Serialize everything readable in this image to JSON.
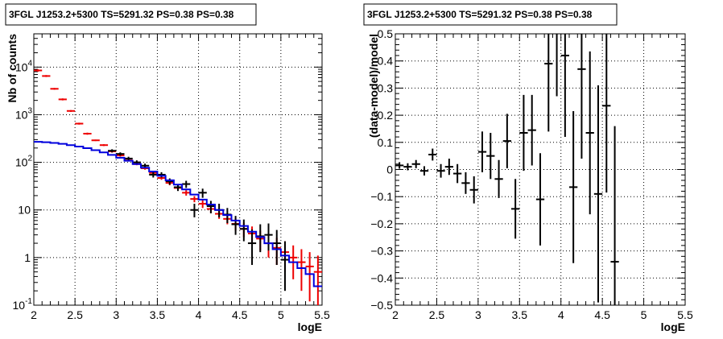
{
  "chart_data": [
    {
      "type": "step-histogram-with-errorbars",
      "title": "3FGL J1253.2+5300 TS=5291.32 PS=0.38 PS=0.38",
      "xlabel": "logE",
      "ylabel": "Nb of counts",
      "xlim": [
        2,
        5.5
      ],
      "ylim": [
        0.1,
        50000
      ],
      "yscale": "log",
      "grid": true,
      "x_tick_labels": [
        "2",
        "2.5",
        "3",
        "3.5",
        "4",
        "4.5",
        "5",
        "5.5"
      ],
      "y_tick_labels": [
        {
          "base": "10",
          "exp": "-1"
        },
        {
          "base": "1",
          "exp": ""
        },
        {
          "base": "10",
          "exp": ""
        },
        {
          "base": "10",
          "exp": "2"
        },
        {
          "base": "10",
          "exp": "3"
        },
        {
          "base": "10",
          "exp": "4"
        }
      ],
      "series": [
        {
          "color": "#ee0000",
          "style": "errorbars",
          "x": [
            2.05,
            2.15,
            2.25,
            2.35,
            2.45,
            2.55,
            2.65,
            2.75,
            2.85,
            2.95,
            3.05,
            3.15,
            3.25,
            3.35,
            3.45,
            3.55,
            3.65,
            3.75,
            3.85,
            3.95,
            4.05,
            4.15,
            4.25,
            4.35,
            4.45,
            4.55,
            4.65,
            4.75,
            4.85,
            4.95,
            5.05,
            5.15,
            5.25,
            5.35,
            5.45
          ],
          "y": [
            8500,
            6500,
            3500,
            2100,
            1200,
            650,
            400,
            290,
            230,
            170,
            140,
            110,
            92,
            75,
            60,
            47,
            37,
            29,
            23,
            17,
            13.5,
            10.5,
            8.3,
            6.5,
            5.1,
            4.0,
            3.2,
            2.5,
            2.0,
            1.6,
            1.3,
            1.0,
            0.8,
            0.65,
            0.5
          ],
          "yerr_low": [
            8000,
            6200,
            3350,
            2000,
            1150,
            620,
            380,
            280,
            220,
            160,
            132,
            104,
            87,
            70,
            55,
            43,
            33,
            26,
            20,
            14.5,
            11,
            8.6,
            6.5,
            5.0,
            3.7,
            2.7,
            2.0,
            1.4,
            1.0,
            0.7,
            0.5,
            0.35,
            0.2,
            0.12,
            0.1
          ],
          "yerr_high": [
            9000,
            6800,
            3650,
            2200,
            1250,
            680,
            420,
            300,
            240,
            180,
            148,
            116,
            97,
            80,
            65,
            51,
            41,
            32,
            26,
            19.5,
            16,
            12.5,
            10.2,
            8.1,
            6.6,
            5.4,
            4.5,
            3.7,
            3.1,
            2.6,
            2.2,
            1.8,
            1.5,
            1.3,
            1.1
          ]
        },
        {
          "color": "#000000",
          "style": "errorbars",
          "x": [
            2.95,
            3.05,
            3.15,
            3.25,
            3.35,
            3.45,
            3.55,
            3.65,
            3.75,
            3.85,
            3.95,
            4.05,
            4.15,
            4.25,
            4.35,
            4.45,
            4.55,
            4.65,
            4.75,
            4.85,
            4.95,
            5.05
          ],
          "y": [
            175,
            150,
            120,
            100,
            85,
            55,
            55,
            40,
            30,
            35,
            10,
            23,
            12,
            10,
            8,
            5,
            4,
            2,
            2.8,
            3,
            2,
            0.9
          ],
          "yerr_low": [
            162,
            138,
            109,
            90,
            76,
            48,
            48,
            34,
            25,
            29,
            7,
            18,
            8.5,
            7,
            5.3,
            3,
            2.2,
            0.7,
            1.3,
            1.4,
            0.7,
            0.2
          ],
          "yerr_high": [
            188,
            162,
            131,
            110,
            94,
            62,
            62,
            46,
            35,
            41,
            13.5,
            28,
            15.5,
            13.5,
            11,
            7.5,
            6.3,
            3.9,
            5,
            5.2,
            3.8,
            2.2
          ]
        },
        {
          "color": "#0000dd",
          "style": "step",
          "x_edges": [
            2.0,
            2.1,
            2.2,
            2.3,
            2.4,
            2.5,
            2.6,
            2.7,
            2.8,
            2.9,
            3.0,
            3.1,
            3.2,
            3.3,
            3.4,
            3.5,
            3.6,
            3.7,
            3.8,
            3.9,
            4.0,
            4.1,
            4.2,
            4.3,
            4.4,
            4.5,
            4.6,
            4.7,
            4.8,
            4.9,
            5.0,
            5.1,
            5.2,
            5.3,
            5.4,
            5.5
          ],
          "y": [
            270,
            265,
            255,
            245,
            230,
            215,
            198,
            180,
            162,
            143,
            125,
            108,
            92,
            77,
            64,
            52,
            42,
            34,
            27,
            21,
            16.5,
            13,
            10,
            7.8,
            6,
            4.6,
            3.5,
            2.7,
            2.0,
            1.5,
            1.1,
            0.8,
            0.6,
            0.45,
            0.25
          ]
        }
      ]
    },
    {
      "type": "errorbars",
      "title": "3FGL J1253.2+5300 TS=5291.32 PS=0.38 PS=0.38",
      "xlabel": "logE",
      "ylabel": "(data-model)/model",
      "xlim": [
        2,
        5.5
      ],
      "ylim": [
        -0.5,
        0.5
      ],
      "grid": true,
      "x_tick_labels": [
        "2",
        "2.5",
        "3",
        "3.5",
        "4",
        "4.5",
        "5",
        "5.5"
      ],
      "y_tick_labels": [
        "−0.5",
        "−0.4",
        "−0.3",
        "−0.2",
        "−0.1",
        "0",
        "0.1",
        "0.2",
        "0.3",
        "0.4",
        "0.5"
      ],
      "series": [
        {
          "color": "#000000",
          "x": [
            2.05,
            2.15,
            2.25,
            2.35,
            2.45,
            2.55,
            2.65,
            2.75,
            2.85,
            2.95,
            3.05,
            3.15,
            3.25,
            3.35,
            3.45,
            3.55,
            3.65,
            3.75,
            3.85,
            3.95,
            4.05,
            4.15,
            4.25,
            4.35,
            4.45,
            4.55,
            4.65
          ],
          "y": [
            0.015,
            0.01,
            0.02,
            -0.005,
            0.055,
            -0.005,
            0.01,
            -0.015,
            -0.05,
            -0.075,
            0.065,
            0.05,
            -0.035,
            0.105,
            -0.145,
            0.135,
            0.145,
            -0.11,
            0.39,
            0.55,
            0.42,
            -0.065,
            0.37,
            0.135,
            -0.09,
            0.235,
            -0.34
          ],
          "yerr": [
            0.012,
            0.013,
            0.015,
            0.017,
            0.022,
            0.025,
            0.03,
            0.035,
            0.04,
            0.05,
            0.075,
            0.085,
            0.07,
            0.1,
            0.11,
            0.14,
            0.13,
            0.17,
            0.25,
            0.28,
            0.3,
            0.28,
            0.33,
            0.3,
            0.4,
            0.32,
            0.5
          ]
        }
      ]
    }
  ]
}
